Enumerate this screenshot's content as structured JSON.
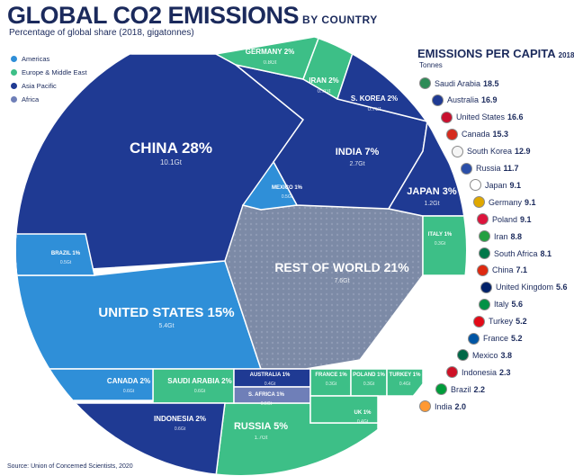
{
  "title": "GLOBAL CO2 EMISSIONS",
  "title_suffix": "BY COUNTRY",
  "subtitle": "Percentage of global share (2018, gigatonnes)",
  "legend": [
    {
      "label": "Americas",
      "color": "#2f8fd8"
    },
    {
      "label": "Europe & Middle East",
      "color": "#3dbf87"
    },
    {
      "label": "Asia Pacific",
      "color": "#1f3a93"
    },
    {
      "label": "Africa",
      "color": "#6f7fb8"
    }
  ],
  "chart_data": {
    "type": "voronoi-treemap",
    "unit": "Gt",
    "cells": [
      {
        "name": "CHINA",
        "share": "28%",
        "value": "10.1Gt",
        "region": "Asia Pacific"
      },
      {
        "name": "UNITED STATES",
        "share": "15%",
        "value": "5.4Gt",
        "region": "Americas"
      },
      {
        "name": "REST OF WORLD",
        "share": "21%",
        "value": "7.6Gt",
        "region": "Other"
      },
      {
        "name": "INDIA",
        "share": "7%",
        "value": "2.7Gt",
        "region": "Asia Pacific"
      },
      {
        "name": "RUSSIA",
        "share": "5%",
        "value": "1.7Gt",
        "region": "Europe & Middle East"
      },
      {
        "name": "JAPAN",
        "share": "3%",
        "value": "1.2Gt",
        "region": "Asia Pacific"
      },
      {
        "name": "GERMANY",
        "share": "2%",
        "value": "0.8Gt",
        "region": "Europe & Middle East"
      },
      {
        "name": "IRAN",
        "share": "2%",
        "value": "0.7Gt",
        "region": "Europe & Middle East"
      },
      {
        "name": "S. KOREA",
        "share": "2%",
        "value": "0.7Gt",
        "region": "Asia Pacific"
      },
      {
        "name": "SAUDI ARABIA",
        "share": "2%",
        "value": "0.6Gt",
        "region": "Europe & Middle East"
      },
      {
        "name": "CANADA",
        "share": "2%",
        "value": "0.6Gt",
        "region": "Americas"
      },
      {
        "name": "INDONESIA",
        "share": "2%",
        "value": "0.6Gt",
        "region": "Asia Pacific"
      },
      {
        "name": "MEXICO",
        "share": "1%",
        "value": "0.5Gt",
        "region": "Americas"
      },
      {
        "name": "BRAZIL",
        "share": "1%",
        "value": "0.5Gt",
        "region": "Americas"
      },
      {
        "name": "AUSTRALIA",
        "share": "1%",
        "value": "0.4Gt",
        "region": "Asia Pacific"
      },
      {
        "name": "S. AFRICA",
        "share": "1%",
        "value": "0.5Gt",
        "region": "Africa"
      },
      {
        "name": "FRANCE",
        "share": "1%",
        "value": "0.3Gt",
        "region": "Europe & Middle East"
      },
      {
        "name": "POLAND",
        "share": "1%",
        "value": "0.3Gt",
        "region": "Europe & Middle East"
      },
      {
        "name": "TURKEY",
        "share": "1%",
        "value": "0.4Gt",
        "region": "Europe & Middle East"
      },
      {
        "name": "UK",
        "share": "1%",
        "value": "0.4Gt",
        "region": "Europe & Middle East"
      },
      {
        "name": "ITALY",
        "share": "1%",
        "value": "0.3Gt",
        "region": "Europe & Middle East"
      }
    ],
    "per_capita": {
      "title": "EMISSIONS PER CAPITA",
      "year": "2018",
      "unit": "Tonnes",
      "items": [
        {
          "country": "Saudi Arabia",
          "value": "18.5",
          "flag": "#2e8b57"
        },
        {
          "country": "Australia",
          "value": "16.9",
          "flag": "#1f3a93"
        },
        {
          "country": "United States",
          "value": "16.6",
          "flag": "#c8102e"
        },
        {
          "country": "Canada",
          "value": "15.3",
          "flag": "#d52b1e"
        },
        {
          "country": "South Korea",
          "value": "12.9",
          "flag": "#f5f5f5"
        },
        {
          "country": "Russia",
          "value": "11.7",
          "flag": "#2a4ea8"
        },
        {
          "country": "Japan",
          "value": "9.1",
          "flag": "#ffffff"
        },
        {
          "country": "Germany",
          "value": "9.1",
          "flag": "#e0a800"
        },
        {
          "country": "Poland",
          "value": "9.1",
          "flag": "#dc143c"
        },
        {
          "country": "Iran",
          "value": "8.8",
          "flag": "#239f40"
        },
        {
          "country": "South Africa",
          "value": "8.1",
          "flag": "#007749"
        },
        {
          "country": "China",
          "value": "7.1",
          "flag": "#de2910"
        },
        {
          "country": "United Kingdom",
          "value": "5.6",
          "flag": "#012169"
        },
        {
          "country": "Italy",
          "value": "5.6",
          "flag": "#009246"
        },
        {
          "country": "Turkey",
          "value": "5.2",
          "flag": "#e30a17"
        },
        {
          "country": "France",
          "value": "5.2",
          "flag": "#0055a4"
        },
        {
          "country": "Mexico",
          "value": "3.8",
          "flag": "#006847"
        },
        {
          "country": "Indonesia",
          "value": "2.3",
          "flag": "#ce1126"
        },
        {
          "country": "Brazil",
          "value": "2.2",
          "flag": "#009c3b"
        },
        {
          "country": "India",
          "value": "2.0",
          "flag": "#ff9933"
        }
      ]
    }
  },
  "source": "Source: Union of Concerned Scientists, 2020"
}
